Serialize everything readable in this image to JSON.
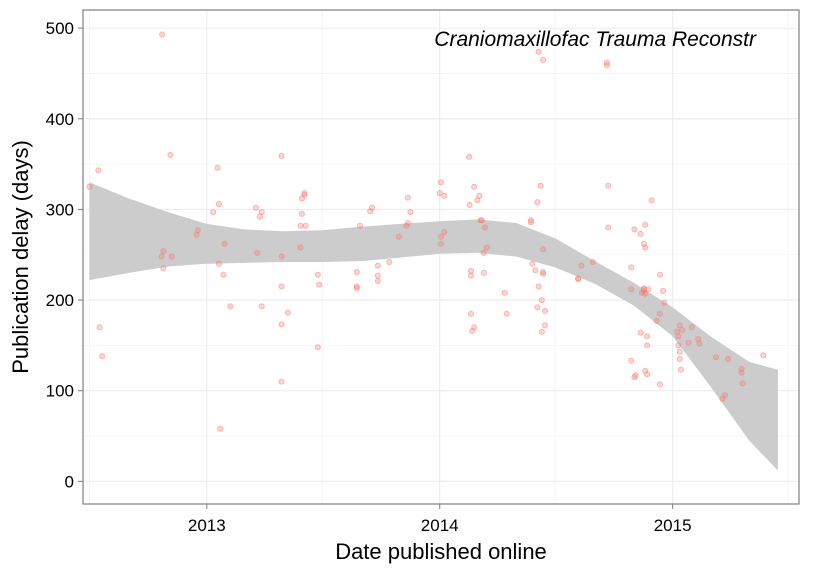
{
  "chart_data": {
    "type": "scatter",
    "annotation": "Craniomaxillofac Trauma Reconstr",
    "xlabel": "Date published online",
    "ylabel": "Publication delay (days)",
    "x_ticks": [
      "2013",
      "2014",
      "2015"
    ],
    "y_ticks": [
      0,
      100,
      200,
      300,
      400,
      500
    ],
    "xlim": [
      "2012-06-21",
      "2015-07-18"
    ],
    "ylim": [
      -25,
      520
    ],
    "grid": true,
    "point_color": "#f8766d",
    "band_color": "#cccccc",
    "smooth_color": "#cccccc",
    "points": [
      {
        "x": "2012-07-01",
        "y": 325
      },
      {
        "x": "2012-07-15",
        "y": 343
      },
      {
        "x": "2012-07-17",
        "y": 170
      },
      {
        "x": "2012-07-21",
        "y": 138
      },
      {
        "x": "2012-10-23",
        "y": 493
      },
      {
        "x": "2012-10-22",
        "y": 248
      },
      {
        "x": "2012-10-25",
        "y": 254
      },
      {
        "x": "2012-10-25",
        "y": 235
      },
      {
        "x": "2012-11-05",
        "y": 360
      },
      {
        "x": "2012-11-07",
        "y": 248
      },
      {
        "x": "2012-12-16",
        "y": 272
      },
      {
        "x": "2012-12-18",
        "y": 277
      },
      {
        "x": "2013-01-11",
        "y": 297
      },
      {
        "x": "2013-01-20",
        "y": 306
      },
      {
        "x": "2013-01-18",
        "y": 346
      },
      {
        "x": "2013-01-20",
        "y": 240
      },
      {
        "x": "2013-01-22",
        "y": 58
      },
      {
        "x": "2013-01-27",
        "y": 228
      },
      {
        "x": "2013-01-29",
        "y": 262
      },
      {
        "x": "2013-02-07",
        "y": 193
      },
      {
        "x": "2013-03-21",
        "y": 252
      },
      {
        "x": "2013-03-19",
        "y": 302
      },
      {
        "x": "2013-03-25",
        "y": 292
      },
      {
        "x": "2013-03-28",
        "y": 297
      },
      {
        "x": "2013-03-28",
        "y": 193
      },
      {
        "x": "2013-04-28",
        "y": 359
      },
      {
        "x": "2013-04-28",
        "y": 248
      },
      {
        "x": "2013-04-28",
        "y": 215
      },
      {
        "x": "2013-04-28",
        "y": 173
      },
      {
        "x": "2013-04-28",
        "y": 110
      },
      {
        "x": "2013-05-08",
        "y": 186
      },
      {
        "x": "2013-05-28",
        "y": 258
      },
      {
        "x": "2013-05-28",
        "y": 282
      },
      {
        "x": "2013-05-30",
        "y": 295
      },
      {
        "x": "2013-05-30",
        "y": 312
      },
      {
        "x": "2013-06-03",
        "y": 318
      },
      {
        "x": "2013-06-03",
        "y": 316
      },
      {
        "x": "2013-06-05",
        "y": 282
      },
      {
        "x": "2013-06-24",
        "y": 228
      },
      {
        "x": "2013-06-26",
        "y": 217
      },
      {
        "x": "2013-06-24",
        "y": 148
      },
      {
        "x": "2013-08-24",
        "y": 215
      },
      {
        "x": "2013-08-24",
        "y": 213
      },
      {
        "x": "2013-08-29",
        "y": 282
      },
      {
        "x": "2013-08-24",
        "y": 231
      },
      {
        "x": "2013-09-14",
        "y": 298
      },
      {
        "x": "2013-09-17",
        "y": 302
      },
      {
        "x": "2013-09-26",
        "y": 238
      },
      {
        "x": "2013-09-26",
        "y": 227
      },
      {
        "x": "2013-09-26",
        "y": 221
      },
      {
        "x": "2013-10-14",
        "y": 242
      },
      {
        "x": "2013-10-29",
        "y": 270
      },
      {
        "x": "2013-11-10",
        "y": 282
      },
      {
        "x": "2013-11-12",
        "y": 313
      },
      {
        "x": "2013-11-12",
        "y": 285
      },
      {
        "x": "2013-11-16",
        "y": 297
      },
      {
        "x": "2014-01-01",
        "y": 318
      },
      {
        "x": "2014-01-03",
        "y": 330
      },
      {
        "x": "2014-01-08",
        "y": 315
      },
      {
        "x": "2014-01-03",
        "y": 270
      },
      {
        "x": "2014-01-03",
        "y": 262
      },
      {
        "x": "2014-01-08",
        "y": 275
      },
      {
        "x": "2014-02-16",
        "y": 358
      },
      {
        "x": "2014-02-17",
        "y": 305
      },
      {
        "x": "2014-02-19",
        "y": 232
      },
      {
        "x": "2014-02-19",
        "y": 227
      },
      {
        "x": "2014-02-19",
        "y": 185
      },
      {
        "x": "2014-02-21",
        "y": 166
      },
      {
        "x": "2014-02-24",
        "y": 170
      },
      {
        "x": "2014-02-24",
        "y": 325
      },
      {
        "x": "2014-03-01",
        "y": 310
      },
      {
        "x": "2014-03-04",
        "y": 315
      },
      {
        "x": "2014-03-06",
        "y": 288
      },
      {
        "x": "2014-03-08",
        "y": 288
      },
      {
        "x": "2014-03-11",
        "y": 252
      },
      {
        "x": "2014-03-11",
        "y": 230
      },
      {
        "x": "2014-03-13",
        "y": 280
      },
      {
        "x": "2014-03-16",
        "y": 258
      },
      {
        "x": "2014-04-13",
        "y": 208
      },
      {
        "x": "2014-04-16",
        "y": 185
      },
      {
        "x": "2014-05-24",
        "y": 288
      },
      {
        "x": "2014-05-24",
        "y": 286
      },
      {
        "x": "2014-05-26",
        "y": 240
      },
      {
        "x": "2014-05-31",
        "y": 233
      },
      {
        "x": "2014-06-03",
        "y": 308
      },
      {
        "x": "2014-06-03",
        "y": 192
      },
      {
        "x": "2014-06-05",
        "y": 215
      },
      {
        "x": "2014-06-05",
        "y": 474
      },
      {
        "x": "2014-06-08",
        "y": 326
      },
      {
        "x": "2014-06-10",
        "y": 200
      },
      {
        "x": "2014-06-10",
        "y": 165
      },
      {
        "x": "2014-06-12",
        "y": 231
      },
      {
        "x": "2014-06-12",
        "y": 229
      },
      {
        "x": "2014-06-12",
        "y": 256
      },
      {
        "x": "2014-06-15",
        "y": 172
      },
      {
        "x": "2014-06-15",
        "y": 188
      },
      {
        "x": "2014-06-12",
        "y": 465
      },
      {
        "x": "2014-08-06",
        "y": 224
      },
      {
        "x": "2014-08-06",
        "y": 223
      },
      {
        "x": "2014-08-11",
        "y": 238
      },
      {
        "x": "2014-08-29",
        "y": 242
      },
      {
        "x": "2014-09-20",
        "y": 462
      },
      {
        "x": "2014-09-20",
        "y": 459
      },
      {
        "x": "2014-09-22",
        "y": 326
      },
      {
        "x": "2014-09-22",
        "y": 280
      },
      {
        "x": "2014-10-28",
        "y": 236
      },
      {
        "x": "2014-10-28",
        "y": 212
      },
      {
        "x": "2014-10-28",
        "y": 133
      },
      {
        "x": "2014-11-02",
        "y": 115
      },
      {
        "x": "2014-11-04",
        "y": 117
      },
      {
        "x": "2014-11-02",
        "y": 278
      },
      {
        "x": "2014-11-12",
        "y": 273
      },
      {
        "x": "2014-11-12",
        "y": 164
      },
      {
        "x": "2014-11-14",
        "y": 208
      },
      {
        "x": "2014-11-17",
        "y": 262
      },
      {
        "x": "2014-11-17",
        "y": 212
      },
      {
        "x": "2014-11-17",
        "y": 210
      },
      {
        "x": "2014-11-17",
        "y": 213
      },
      {
        "x": "2014-11-19",
        "y": 258
      },
      {
        "x": "2014-11-19",
        "y": 283
      },
      {
        "x": "2014-11-19",
        "y": 207
      },
      {
        "x": "2014-11-19",
        "y": 122
      },
      {
        "x": "2014-11-22",
        "y": 118
      },
      {
        "x": "2014-11-22",
        "y": 160
      },
      {
        "x": "2014-11-22",
        "y": 150
      },
      {
        "x": "2014-11-24",
        "y": 212
      },
      {
        "x": "2014-11-29",
        "y": 310
      },
      {
        "x": "2014-12-07",
        "y": 177
      },
      {
        "x": "2014-12-12",
        "y": 185
      },
      {
        "x": "2014-12-12",
        "y": 228
      },
      {
        "x": "2014-12-12",
        "y": 107
      },
      {
        "x": "2014-12-17",
        "y": 210
      },
      {
        "x": "2014-12-19",
        "y": 197
      },
      {
        "x": "2015-01-08",
        "y": 165
      },
      {
        "x": "2015-01-10",
        "y": 160
      },
      {
        "x": "2015-01-10",
        "y": 150
      },
      {
        "x": "2015-01-12",
        "y": 143
      },
      {
        "x": "2015-01-12",
        "y": 135
      },
      {
        "x": "2015-01-14",
        "y": 123
      },
      {
        "x": "2015-01-12",
        "y": 172
      },
      {
        "x": "2015-01-16",
        "y": 167
      },
      {
        "x": "2015-01-26",
        "y": 153
      },
      {
        "x": "2015-01-31",
        "y": 170
      },
      {
        "x": "2015-02-10",
        "y": 157
      },
      {
        "x": "2015-02-12",
        "y": 152
      },
      {
        "x": "2015-03-10",
        "y": 137
      },
      {
        "x": "2015-03-20",
        "y": 91
      },
      {
        "x": "2015-03-24",
        "y": 95
      },
      {
        "x": "2015-03-29",
        "y": 135
      },
      {
        "x": "2015-04-19",
        "y": 124
      },
      {
        "x": "2015-04-19",
        "y": 120
      },
      {
        "x": "2015-04-21",
        "y": 108
      },
      {
        "x": "2015-05-23",
        "y": 139
      }
    ],
    "smooth": [
      {
        "x": "2012-07-01",
        "low": 222,
        "high": 330
      },
      {
        "x": "2012-09-01",
        "low": 230,
        "high": 312
      },
      {
        "x": "2012-11-01",
        "low": 237,
        "high": 297
      },
      {
        "x": "2013-01-01",
        "low": 240,
        "high": 284
      },
      {
        "x": "2013-03-01",
        "low": 241,
        "high": 278
      },
      {
        "x": "2013-05-01",
        "low": 242,
        "high": 276
      },
      {
        "x": "2013-07-01",
        "low": 242,
        "high": 277
      },
      {
        "x": "2013-09-01",
        "low": 243,
        "high": 281
      },
      {
        "x": "2013-11-01",
        "low": 247,
        "high": 284
      },
      {
        "x": "2014-01-01",
        "low": 251,
        "high": 287
      },
      {
        "x": "2014-03-01",
        "low": 252,
        "high": 289
      },
      {
        "x": "2014-05-01",
        "low": 248,
        "high": 285
      },
      {
        "x": "2014-07-01",
        "low": 236,
        "high": 268
      },
      {
        "x": "2014-09-01",
        "low": 218,
        "high": 243
      },
      {
        "x": "2014-11-01",
        "low": 194,
        "high": 219
      },
      {
        "x": "2015-01-01",
        "low": 160,
        "high": 192
      },
      {
        "x": "2015-03-01",
        "low": 105,
        "high": 160
      },
      {
        "x": "2015-05-01",
        "low": 45,
        "high": 132
      },
      {
        "x": "2015-06-15",
        "low": 12,
        "high": 123
      }
    ]
  }
}
